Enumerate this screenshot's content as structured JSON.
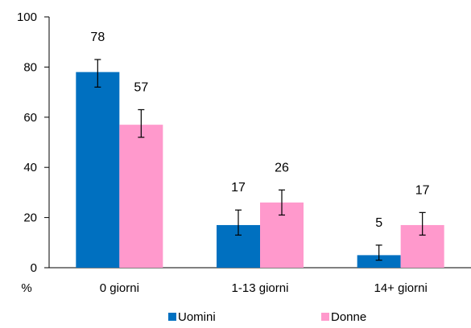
{
  "chart_data": {
    "type": "bar",
    "categories": [
      "0 giorni",
      "1-13 giorni",
      "14+ giorni"
    ],
    "series": [
      {
        "name": "Uomini",
        "color": "#0070C0",
        "values": [
          78,
          17,
          5
        ],
        "error_low": [
          72,
          13,
          3
        ],
        "error_high": [
          83,
          23,
          9
        ]
      },
      {
        "name": "Donne",
        "color": "#FF99CC",
        "values": [
          57,
          26,
          17
        ],
        "error_low": [
          52,
          21,
          13
        ],
        "error_high": [
          63,
          31,
          22
        ]
      }
    ],
    "data_labels": [
      [
        "78",
        "17",
        "5"
      ],
      [
        "57",
        "26",
        "17"
      ]
    ],
    "ylim": [
      0,
      100
    ],
    "yticks": [
      0,
      20,
      40,
      60,
      80,
      100
    ],
    "ylabel": "%",
    "xlabel": "",
    "title": "",
    "grid": false,
    "legend_position": "bottom"
  }
}
